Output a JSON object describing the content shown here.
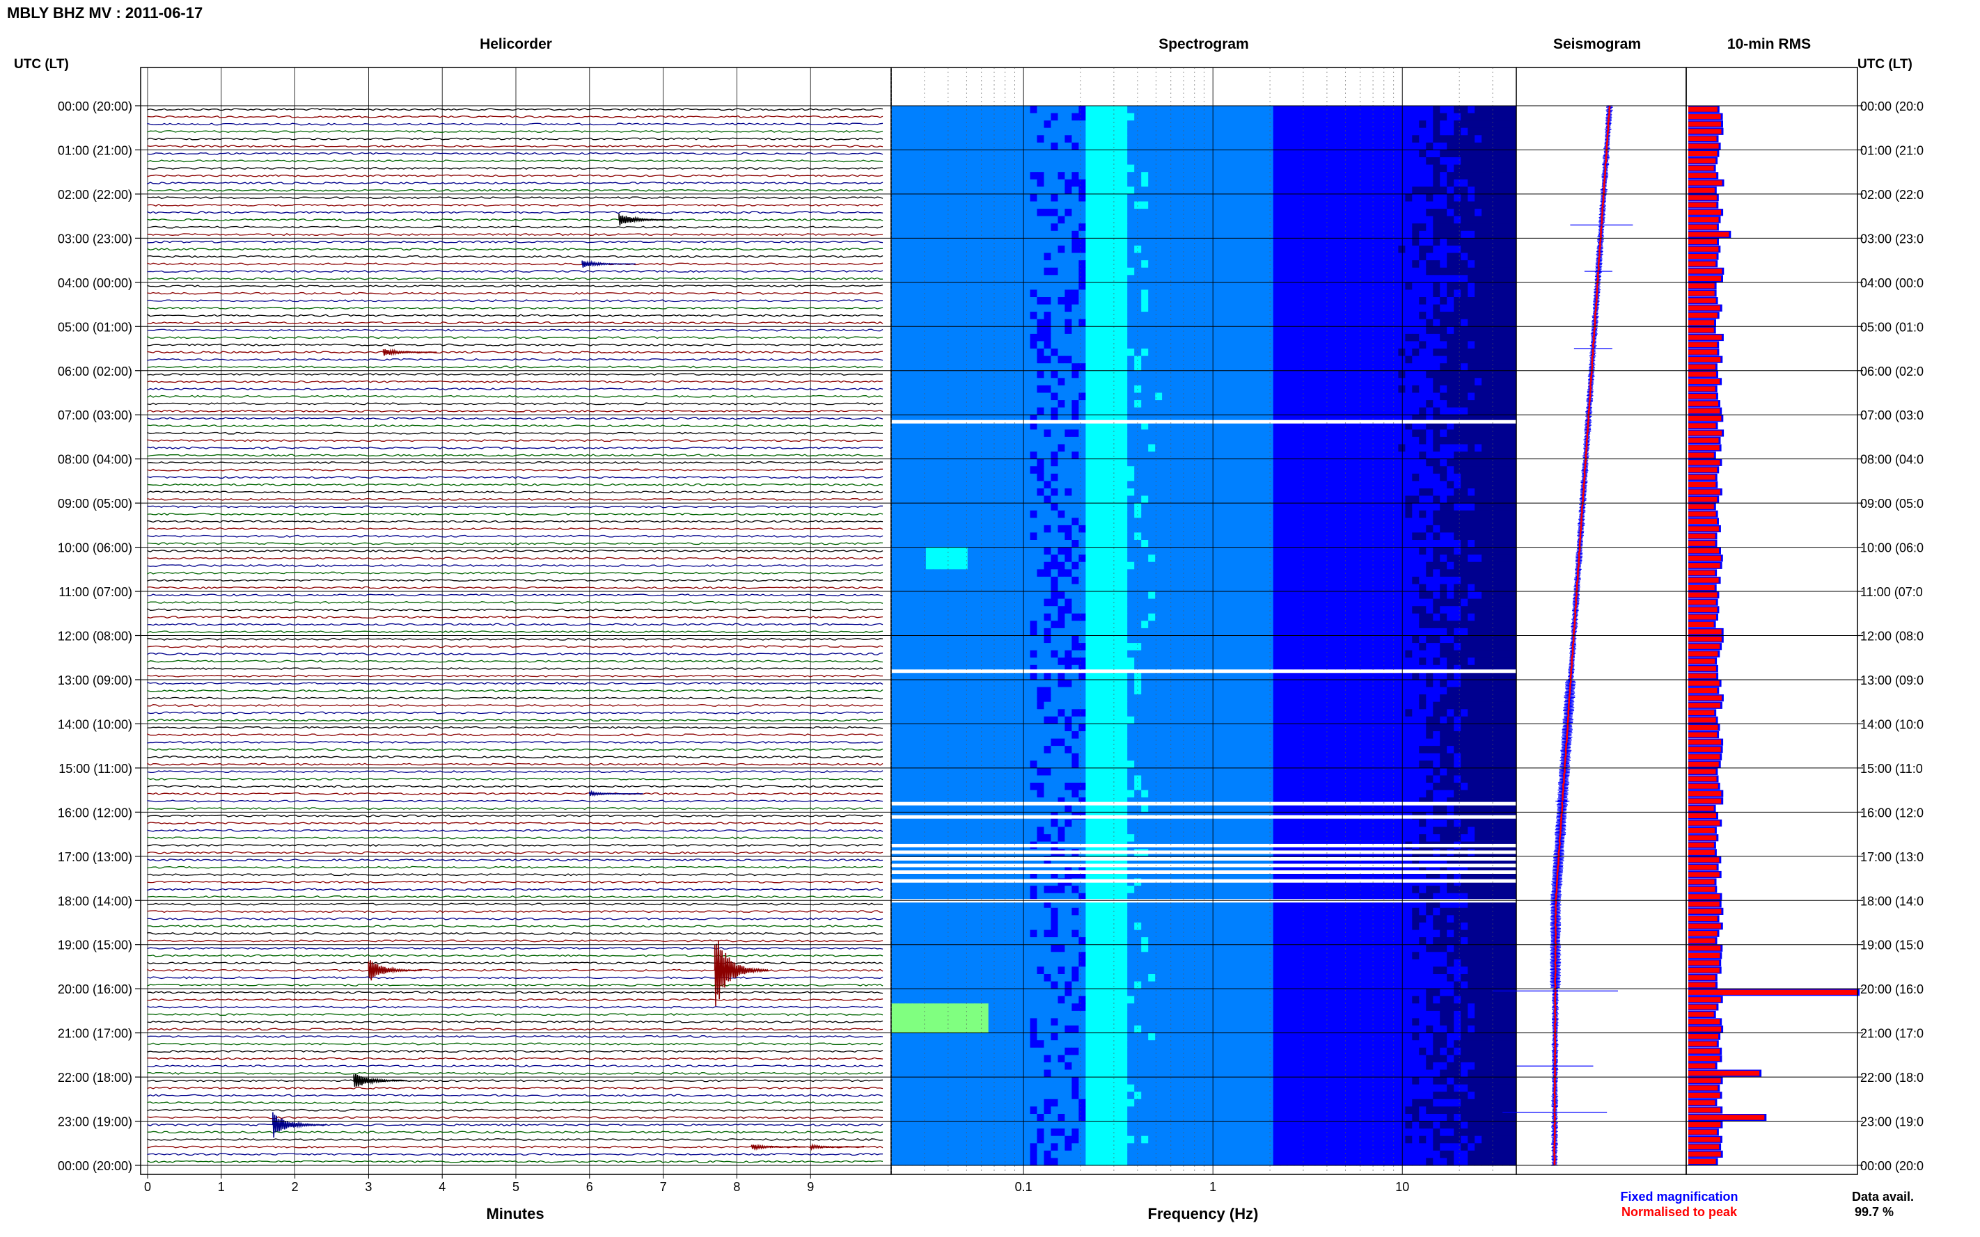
{
  "figure": {
    "title": "MBLY BHZ MV : 2011-06-17",
    "left_axis_title": "UTC (LT)",
    "right_axis_title": "UTC (LT)",
    "helicorder_title": "Helicorder",
    "spectrogram_title": "Spectrogram",
    "seismogram_title": "Seismogram",
    "rms_title": "10-min RMS",
    "minutes_label": "Minutes",
    "frequency_label": "Frequency (Hz)",
    "legend_fixed": "Fixed magnification",
    "legend_normalised": "Normalised to peak",
    "data_avail_label": "Data avail.",
    "data_avail_value": "99.7 %",
    "colors": {
      "trace_black": "#000000",
      "trace_red": "#8b0000",
      "trace_blue": "#00008b",
      "trace_green": "#006400",
      "fixed": "#0000ff",
      "normalised": "#ff0000"
    }
  },
  "chart_data": {
    "type": "heatmap",
    "time_labels_left": [
      "00:00 (20:00)",
      "01:00 (21:00)",
      "02:00 (22:00)",
      "03:00 (23:00)",
      "04:00 (00:00)",
      "05:00 (01:00)",
      "06:00 (02:00)",
      "07:00 (03:00)",
      "08:00 (04:00)",
      "09:00 (05:00)",
      "10:00 (06:00)",
      "11:00 (07:00)",
      "12:00 (08:00)",
      "13:00 (09:00)",
      "14:00 (10:00)",
      "15:00 (11:00)",
      "16:00 (12:00)",
      "17:00 (13:00)",
      "18:00 (14:00)",
      "19:00 (15:00)",
      "20:00 (16:00)",
      "21:00 (17:00)",
      "22:00 (18:00)",
      "23:00 (19:00)",
      "00:00 (20:00)"
    ],
    "time_labels_right": [
      "00:00 (20:0",
      "01:00 (21:0",
      "02:00 (22:0",
      "03:00 (23:0",
      "04:00 (00:0",
      "05:00 (01:0",
      "06:00 (02:0",
      "07:00 (03:0",
      "08:00 (04:0",
      "09:00 (05:0",
      "10:00 (06:0",
      "11:00 (07:0",
      "12:00 (08:0",
      "13:00 (09:0",
      "14:00 (10:0",
      "15:00 (11:0",
      "16:00 (12:0",
      "17:00 (13:0",
      "18:00 (14:0",
      "19:00 (15:0",
      "20:00 (16:0",
      "21:00 (17:0",
      "22:00 (18:0",
      "23:00 (19:0",
      "00:00 (20:0"
    ],
    "helicorder": {
      "minute_ticks": [
        "0",
        "1",
        "2",
        "3",
        "4",
        "5",
        "6",
        "7",
        "8",
        "9"
      ],
      "xlim": [
        0,
        10
      ],
      "rows": 144,
      "color_cycle": [
        "black",
        "red",
        "blue",
        "green"
      ],
      "events": [
        {
          "row": 15,
          "minute": 6.4,
          "amp": 10,
          "color": "black"
        },
        {
          "row": 21,
          "minute": 5.9,
          "amp": 6,
          "color": "blue"
        },
        {
          "row": 33,
          "minute": 3.2,
          "amp": 6,
          "color": "red"
        },
        {
          "row": 93,
          "minute": 6.0,
          "amp": 3,
          "color": "blue"
        },
        {
          "row": 117,
          "minute": 7.7,
          "amp": 60,
          "color": "red"
        },
        {
          "row": 117,
          "minute": 3.0,
          "amp": 18,
          "color": "red"
        },
        {
          "row": 132,
          "minute": 2.8,
          "amp": 14,
          "color": "black"
        },
        {
          "row": 138,
          "minute": 1.7,
          "amp": 20,
          "color": "blue"
        },
        {
          "row": 141,
          "minute": 8.2,
          "amp": 4,
          "color": "red"
        },
        {
          "row": 141,
          "minute": 9.0,
          "amp": 3,
          "color": "red"
        }
      ]
    },
    "spectrogram": {
      "x_scale": "log",
      "xlim": [
        0.02,
        40
      ],
      "major_ticks": [
        "0.1",
        "1",
        "10"
      ],
      "gap_hours": [
        7.15,
        12.8,
        15.8,
        16.1,
        16.75,
        16.9,
        17.05,
        17.2,
        17.35,
        17.55,
        18.0
      ],
      "colormap": [
        "#00008f",
        "#0000ff",
        "#0080ff",
        "#00ffff",
        "#80ff80",
        "#ffff00"
      ]
    },
    "seismogram": {
      "series": [
        {
          "name": "Fixed magnification",
          "color": "#0000ff"
        },
        {
          "name": "Normalised to peak",
          "color": "#ff0000"
        }
      ]
    },
    "rms": {
      "bars": 144,
      "max_value": 1.0,
      "peaks": [
        {
          "row": 17,
          "value": 0.24
        },
        {
          "row": 120,
          "value": 1.0
        },
        {
          "row": 131,
          "value": 0.42
        },
        {
          "row": 137,
          "value": 0.45
        }
      ]
    }
  }
}
